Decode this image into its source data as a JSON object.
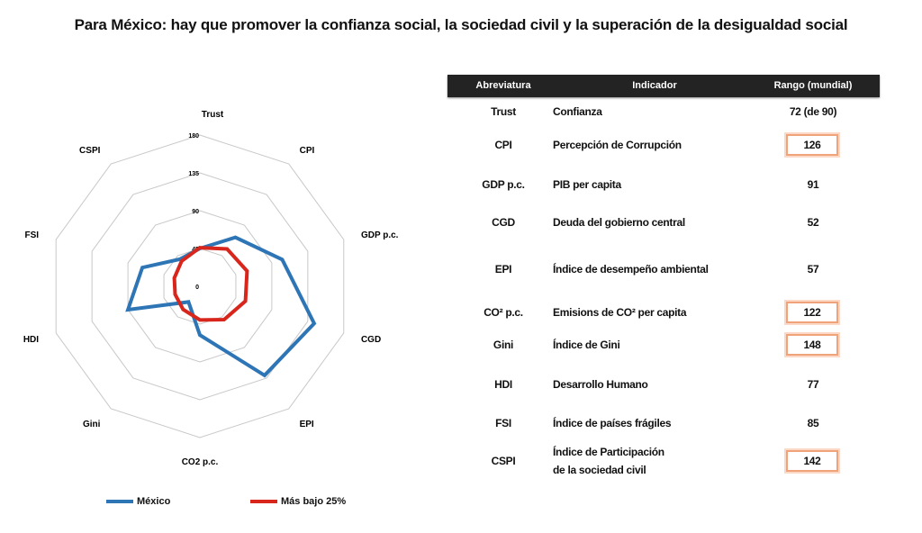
{
  "title": "Para México: hay que promover la confianza social, la sociedad civil y la superación de la desigualdad social",
  "chart_data": {
    "type": "radar",
    "axes": [
      "Trust",
      "CPI",
      "GDP p.c.",
      "CGD",
      "EPI",
      "CO2 p.c.",
      "Gini",
      "HDI",
      "FSI",
      "CSPI"
    ],
    "ticks": [
      0,
      45,
      90,
      135,
      180
    ],
    "range": [
      0,
      180
    ],
    "series": [
      {
        "name": "México",
        "color": "#2e75b6",
        "values": [
          45,
          72,
          103,
          143,
          131,
          58,
          23,
          90,
          72,
          40
        ]
      },
      {
        "name": "Más bajo 25%",
        "color": "#d9261c",
        "values": [
          46,
          55,
          59,
          57,
          49,
          40,
          34,
          31,
          32,
          37
        ]
      }
    ],
    "legend": "bottom"
  },
  "table": {
    "headers": [
      "Abreviatura",
      "Indicador",
      "Rango (mundial)"
    ],
    "rows": [
      {
        "abbr": "Trust",
        "ind": "Confianza",
        "ind2": "",
        "rank": "72 (de 90)",
        "hl": false
      },
      {
        "abbr": "CPI",
        "ind": "Percepción de Corrupción",
        "ind2": "",
        "rank": "126",
        "hl": true
      },
      {
        "abbr": "GDP p.c.",
        "ind": "PIB per capita",
        "ind2": "",
        "rank": "91",
        "hl": false
      },
      {
        "abbr": "CGD",
        "ind": "Deuda del gobierno central",
        "ind2": "",
        "rank": "52",
        "hl": false
      },
      {
        "abbr": "EPI",
        "ind": "Índice de desempeño ambiental",
        "ind2": "",
        "rank": "57",
        "hl": false
      },
      {
        "abbr": "CO² p.c.",
        "ind": "Emisions de CO² per capita",
        "ind2": "",
        "rank": "122",
        "hl": true
      },
      {
        "abbr": "Gini",
        "ind": "Índice de Gini",
        "ind2": "",
        "rank": "148",
        "hl": true
      },
      {
        "abbr": "HDI",
        "ind": "Desarrollo Humano",
        "ind2": "",
        "rank": "77",
        "hl": false
      },
      {
        "abbr": "FSI",
        "ind": "Índice de países frágiles",
        "ind2": "",
        "rank": "85",
        "hl": false
      },
      {
        "abbr": "CSPI",
        "ind": "Índice de Participación",
        "ind2": "de la sociedad civil",
        "rank": "142",
        "hl": true
      }
    ]
  }
}
